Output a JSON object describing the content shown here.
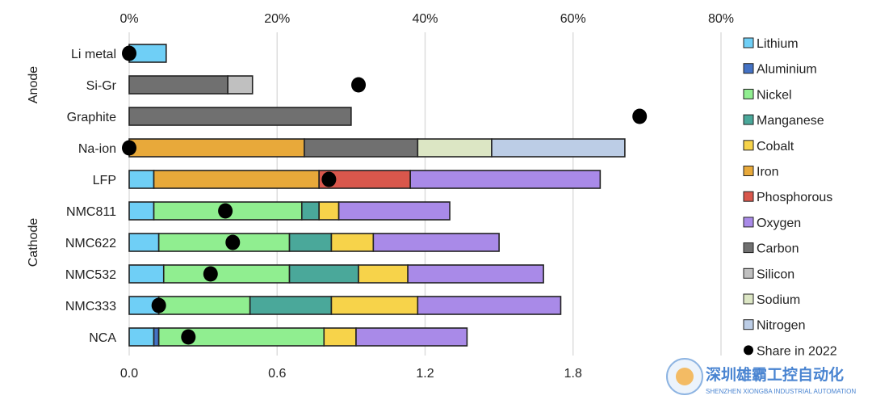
{
  "chart_data": {
    "type": "bar",
    "orientation": "horizontal-stacked",
    "categories": [
      "Li metal",
      "Si-Gr",
      "Graphite",
      "Na-ion",
      "LFP",
      "NMC811",
      "NMC622",
      "NMC532",
      "NMC333",
      "NCA"
    ],
    "groups": [
      {
        "label": "Anode",
        "categories": [
          "Li metal",
          "Si-Gr",
          "Graphite"
        ]
      },
      {
        "label": "Cathode",
        "categories": [
          "Na-ion",
          "LFP",
          "NMC811",
          "NMC622",
          "NMC532",
          "NMC333",
          "NCA"
        ]
      }
    ],
    "series": [
      {
        "name": "Lithium",
        "color": "#6fcff6",
        "values": [
          0.15,
          0,
          0,
          0,
          0.1,
          0.1,
          0.12,
          0.14,
          0.12,
          0.1
        ]
      },
      {
        "name": "Aluminium",
        "color": "#4472c4",
        "values": [
          0,
          0,
          0,
          0,
          0,
          0,
          0,
          0,
          0,
          0.02
        ]
      },
      {
        "name": "Nickel",
        "color": "#90ee90",
        "values": [
          0,
          0,
          0,
          0,
          0,
          0.6,
          0.53,
          0.51,
          0.37,
          0.67
        ]
      },
      {
        "name": "Manganese",
        "color": "#4aa89a",
        "values": [
          0,
          0,
          0,
          0,
          0,
          0.07,
          0.17,
          0.28,
          0.33,
          0
        ]
      },
      {
        "name": "Cobalt",
        "color": "#f7d34a",
        "values": [
          0,
          0,
          0,
          0,
          0,
          0.08,
          0.17,
          0.2,
          0.35,
          0.13
        ]
      },
      {
        "name": "Iron",
        "color": "#e8a93a",
        "values": [
          0,
          0,
          0,
          0.71,
          0.67,
          0,
          0,
          0,
          0,
          0
        ]
      },
      {
        "name": "Phosphorous",
        "color": "#d9574c",
        "values": [
          0,
          0,
          0,
          0,
          0.37,
          0,
          0,
          0,
          0,
          0
        ]
      },
      {
        "name": "Oxygen",
        "color": "#a98ae8",
        "values": [
          0,
          0,
          0,
          0,
          0.77,
          0.45,
          0.51,
          0.55,
          0.58,
          0.45
        ]
      },
      {
        "name": "Carbon",
        "color": "#707070",
        "values": [
          0,
          0.4,
          0.9,
          0.46,
          0,
          0,
          0,
          0,
          0,
          0
        ]
      },
      {
        "name": "Silicon",
        "color": "#c0c0c0",
        "values": [
          0,
          0.1,
          0,
          0,
          0,
          0,
          0,
          0,
          0,
          0
        ]
      },
      {
        "name": "Sodium",
        "color": "#dce6c4",
        "values": [
          0,
          0,
          0,
          0.3,
          0,
          0,
          0,
          0,
          0,
          0
        ]
      },
      {
        "name": "Nitrogen",
        "color": "#bccde6",
        "values": [
          0,
          0,
          0,
          0.54,
          0,
          0,
          0,
          0,
          0,
          0
        ]
      }
    ],
    "share_series": {
      "name": "Share in 2022",
      "color": "#000000",
      "unit": "%",
      "values": [
        0,
        31,
        69,
        0,
        27,
        13,
        14,
        11,
        4,
        8
      ]
    },
    "xlim": [
      0,
      2.4
    ],
    "xticks": [
      "0.0",
      "0.6",
      "1.2",
      "1.8"
    ],
    "xtick_values": [
      0,
      0.6,
      1.2,
      1.8
    ],
    "x2lim": [
      0,
      80
    ],
    "x2ticks": [
      "0%",
      "20%",
      "40%",
      "60%",
      "80%"
    ],
    "x2tick_values": [
      0,
      20,
      40,
      60,
      80
    ],
    "grid": true,
    "legend_position": "right"
  },
  "watermark": {
    "text": "深圳雄霸工控自动化",
    "subtext": "SHENZHEN XIONGBA INDUSTRIAL AUTOMATION"
  }
}
